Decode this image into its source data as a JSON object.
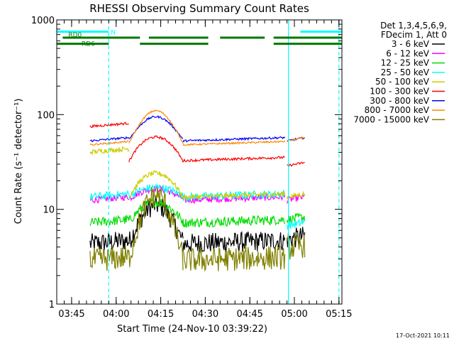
{
  "chart_data": {
    "type": "line",
    "title": "RHESSI Observing Summary Count Rates",
    "xlabel": "Start Time (24-Nov-10 03:39:22)",
    "ylabel": "Count Rate (s⁻¹ detector⁻¹)",
    "y_scale": "log",
    "ylim": [
      1,
      1000
    ],
    "xlim_minutes_since_0340": [
      0,
      96
    ],
    "x_ticks": [
      {
        "label": "03:45",
        "t": 5
      },
      {
        "label": "04:00",
        "t": 20
      },
      {
        "label": "04:15",
        "t": 35
      },
      {
        "label": "04:30",
        "t": 50
      },
      {
        "label": "04:45",
        "t": 65
      },
      {
        "label": "05:00",
        "t": 80
      },
      {
        "label": "05:15",
        "t": 95
      }
    ],
    "y_ticks": [
      {
        "label": "1",
        "v": 1
      },
      {
        "label": "10",
        "v": 10
      },
      {
        "label": "100",
        "v": 100
      },
      {
        "label": "1000",
        "v": 1000
      }
    ],
    "legend_header": [
      "Det 1,3,4,5,6,9,",
      "FDecim 1, Att 0"
    ],
    "legend_position": "right",
    "series": [
      {
        "name": "3 - 6 keV",
        "color": "#000000",
        "levels": {
          "early": 4.5,
          "peak": 11,
          "late": 4.5,
          "end": 5
        }
      },
      {
        "name": "6 - 12 keV",
        "color": "#ff00ff",
        "levels": {
          "early": 13,
          "peak": 16.5,
          "late": 13,
          "end": 13
        }
      },
      {
        "name": "12 - 25 keV",
        "color": "#00dd00",
        "levels": {
          "early": 7.5,
          "peak": 12,
          "late": 7.5,
          "end": 8
        }
      },
      {
        "name": "25 - 50 keV",
        "color": "#00ffff",
        "levels": {
          "early": 14,
          "peak": 17,
          "late": 14,
          "end": 7
        }
      },
      {
        "name": "50 - 100 keV",
        "color": "#cccc00",
        "levels": {
          "early": 42,
          "peak": 24,
          "late": 14,
          "end": 14
        }
      },
      {
        "name": "100 - 300 keV",
        "color": "#ff0000",
        "levels": {
          "early": 78,
          "peak": 58,
          "late": 34,
          "end": 30
        }
      },
      {
        "name": "300 - 800 keV",
        "color": "#0000ff",
        "levels": {
          "early": 55,
          "peak": 95,
          "late": 55,
          "end": 55
        }
      },
      {
        "name": "800 - 7000 keV",
        "color": "#ff8800",
        "levels": {
          "early": 50,
          "peak": 110,
          "late": 50,
          "end": 55
        }
      },
      {
        "name": "7000 - 15000 keV",
        "color": "#808000",
        "levels": {
          "early": 3,
          "peak": 14,
          "late": 3,
          "end": 4
        }
      }
    ],
    "flag_bars": [
      {
        "label": "N",
        "color": "#00ffff",
        "value": 750,
        "segments": [
          [
            0,
            17.5
          ],
          [
            82,
            96
          ]
        ]
      },
      {
        "label": "RD0",
        "color": "#007700",
        "value": 650,
        "segments": [
          [
            2,
            28
          ],
          [
            31,
            51
          ],
          [
            55,
            70
          ],
          [
            73,
            96
          ]
        ]
      },
      {
        "label": "RD6",
        "color": "#007700",
        "value": 560,
        "segments": [
          [
            0,
            17.5
          ],
          [
            28,
            51
          ],
          [
            73,
            96
          ]
        ]
      }
    ],
    "vlines": [
      {
        "t": 17.5,
        "color": "#00ffff",
        "style": "dashed"
      },
      {
        "t": 78,
        "color": "#00ffff",
        "style": "solid"
      },
      {
        "t": 95,
        "color": "#00ffff",
        "style": "dashed"
      }
    ]
  },
  "footer": {
    "date": "17-Oct-2021 10:11"
  }
}
